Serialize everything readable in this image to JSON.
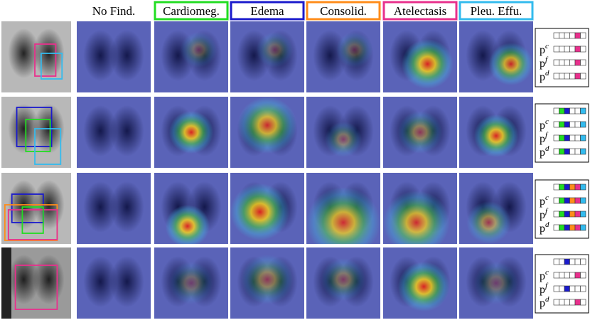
{
  "header": {
    "columns": [
      "No Find.",
      "Cardiomeg.",
      "Edema",
      "Consolid.",
      "Atelectasis",
      "Pleu. Effu."
    ]
  },
  "rows": [
    {
      "labels": [
        {
          "base": "p",
          "sup": "c"
        },
        {
          "base": "p",
          "sup": "f"
        },
        {
          "base": "p",
          "sup": "d"
        }
      ]
    },
    {
      "labels": [
        {
          "base": "p",
          "sup": "c"
        },
        {
          "base": "p",
          "sup": "f"
        },
        {
          "base": "p",
          "sup": "d"
        }
      ]
    },
    {
      "labels": [
        {
          "base": "p",
          "sup": "c"
        },
        {
          "base": "p",
          "sup": "f"
        },
        {
          "base": "p",
          "sup": "d"
        }
      ]
    },
    {
      "labels": [
        {
          "base": "p",
          "sup": "c"
        },
        {
          "base": "p",
          "sup": "f"
        },
        {
          "base": "p",
          "sup": "d"
        }
      ]
    }
  ]
}
